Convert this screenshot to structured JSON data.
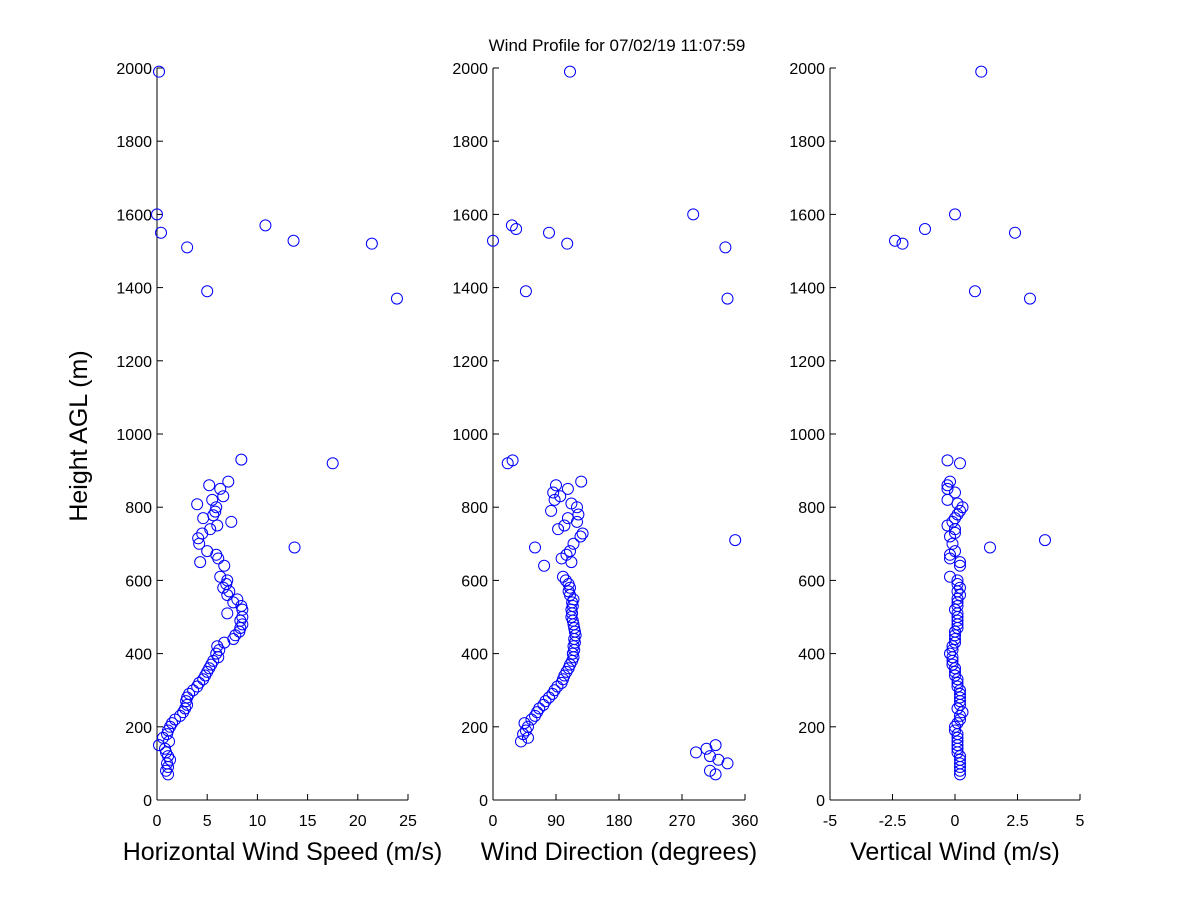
{
  "figure": {
    "title": "Wind Profile for  07/02/19 11:07:59",
    "ylabel": "Height AGL (m)"
  },
  "chart_data": [
    {
      "type": "scatter",
      "xlabel": "Horizontal Wind Speed (m/s)",
      "ylabel": "Height AGL (m)",
      "xlim": [
        0,
        25
      ],
      "ylim": [
        0,
        2000
      ],
      "xticks": [
        0,
        5,
        10,
        15,
        20,
        25
      ],
      "xtick_labels": [
        "0",
        "5",
        "10",
        "15",
        "20",
        "25"
      ],
      "yticks": [
        0,
        200,
        400,
        600,
        800,
        1000,
        1200,
        1400,
        1600,
        1800,
        2000
      ],
      "ytick_labels": [
        "0",
        "200",
        "400",
        "600",
        "800",
        "1000",
        "1200",
        "1400",
        "1600",
        "1800",
        "2000"
      ],
      "color": "#0000ff",
      "points": [
        [
          0.2,
          1990
        ],
        [
          0.0,
          1600
        ],
        [
          0.4,
          1550
        ],
        [
          3.0,
          1510
        ],
        [
          10.8,
          1570
        ],
        [
          13.6,
          1528
        ],
        [
          21.4,
          1520
        ],
        [
          5.0,
          1390
        ],
        [
          23.9,
          1370
        ],
        [
          8.4,
          930
        ],
        [
          17.5,
          920
        ],
        [
          7.1,
          870
        ],
        [
          5.2,
          860
        ],
        [
          6.3,
          850
        ],
        [
          6.6,
          830
        ],
        [
          5.5,
          820
        ],
        [
          4.0,
          808
        ],
        [
          5.9,
          800
        ],
        [
          5.8,
          788
        ],
        [
          5.6,
          778
        ],
        [
          4.6,
          770
        ],
        [
          7.4,
          760
        ],
        [
          6.0,
          750
        ],
        [
          5.3,
          740
        ],
        [
          4.5,
          728
        ],
        [
          4.1,
          715
        ],
        [
          4.2,
          700
        ],
        [
          13.7,
          690
        ],
        [
          5.0,
          680
        ],
        [
          5.9,
          670
        ],
        [
          6.1,
          660
        ],
        [
          4.3,
          650
        ],
        [
          6.7,
          640
        ],
        [
          6.3,
          610
        ],
        [
          7.0,
          600
        ],
        [
          6.9,
          590
        ],
        [
          6.6,
          580
        ],
        [
          7.2,
          570
        ],
        [
          7.0,
          560
        ],
        [
          8.0,
          548
        ],
        [
          7.6,
          540
        ],
        [
          8.4,
          530
        ],
        [
          8.5,
          520
        ],
        [
          7.0,
          510
        ],
        [
          8.5,
          500
        ],
        [
          8.3,
          490
        ],
        [
          8.5,
          480
        ],
        [
          8.3,
          470
        ],
        [
          8.2,
          460
        ],
        [
          7.8,
          450
        ],
        [
          7.6,
          440
        ],
        [
          6.7,
          430
        ],
        [
          6.0,
          420
        ],
        [
          6.2,
          410
        ],
        [
          5.9,
          400
        ],
        [
          6.1,
          390
        ],
        [
          5.6,
          380
        ],
        [
          5.4,
          370
        ],
        [
          5.2,
          360
        ],
        [
          5.0,
          350
        ],
        [
          4.8,
          340
        ],
        [
          4.6,
          330
        ],
        [
          4.2,
          320
        ],
        [
          4.0,
          310
        ],
        [
          3.6,
          300
        ],
        [
          3.2,
          290
        ],
        [
          3.0,
          280
        ],
        [
          2.9,
          270
        ],
        [
          3.0,
          260
        ],
        [
          2.8,
          250
        ],
        [
          2.6,
          240
        ],
        [
          2.3,
          230
        ],
        [
          1.8,
          220
        ],
        [
          1.5,
          210
        ],
        [
          1.3,
          200
        ],
        [
          1.1,
          190
        ],
        [
          1.0,
          180
        ],
        [
          0.6,
          170
        ],
        [
          1.2,
          160
        ],
        [
          0.2,
          150
        ],
        [
          0.8,
          140
        ],
        [
          0.9,
          130
        ],
        [
          1.1,
          120
        ],
        [
          1.3,
          110
        ],
        [
          1.0,
          100
        ],
        [
          1.1,
          90
        ],
        [
          0.9,
          80
        ],
        [
          1.1,
          70
        ]
      ]
    },
    {
      "type": "scatter",
      "xlabel": "Wind Direction (degrees)",
      "ylabel": "",
      "xlim": [
        0,
        360
      ],
      "ylim": [
        0,
        2000
      ],
      "xticks": [
        0,
        90,
        180,
        270,
        360
      ],
      "xtick_labels": [
        "0",
        "90",
        "180",
        "270",
        "360"
      ],
      "yticks": [
        0,
        200,
        400,
        600,
        800,
        1000,
        1200,
        1400,
        1600,
        1800,
        2000
      ],
      "ytick_labels": [
        "0",
        "200",
        "400",
        "600",
        "800",
        "1000",
        "1200",
        "1400",
        "1600",
        "1800",
        "2000"
      ],
      "color": "#0000ff",
      "points": [
        [
          110,
          1990
        ],
        [
          286,
          1600
        ],
        [
          27,
          1570
        ],
        [
          33,
          1560
        ],
        [
          80,
          1550
        ],
        [
          0,
          1528
        ],
        [
          106,
          1520
        ],
        [
          332,
          1510
        ],
        [
          47,
          1390
        ],
        [
          335,
          1370
        ],
        [
          21,
          920
        ],
        [
          28,
          928
        ],
        [
          126,
          870
        ],
        [
          90,
          860
        ],
        [
          107,
          850
        ],
        [
          86,
          840
        ],
        [
          96,
          830
        ],
        [
          88,
          820
        ],
        [
          112,
          810
        ],
        [
          120,
          800
        ],
        [
          83,
          790
        ],
        [
          122,
          780
        ],
        [
          107,
          770
        ],
        [
          120,
          760
        ],
        [
          102,
          750
        ],
        [
          93,
          740
        ],
        [
          128,
          728
        ],
        [
          125,
          720
        ],
        [
          346,
          710
        ],
        [
          115,
          700
        ],
        [
          60,
          690
        ],
        [
          110,
          680
        ],
        [
          105,
          670
        ],
        [
          98,
          660
        ],
        [
          112,
          650
        ],
        [
          73,
          640
        ],
        [
          100,
          610
        ],
        [
          104,
          600
        ],
        [
          108,
          590
        ],
        [
          110,
          580
        ],
        [
          108,
          570
        ],
        [
          110,
          560
        ],
        [
          115,
          548
        ],
        [
          113,
          540
        ],
        [
          114,
          530
        ],
        [
          112,
          520
        ],
        [
          113,
          510
        ],
        [
          112,
          500
        ],
        [
          114,
          490
        ],
        [
          115,
          480
        ],
        [
          116,
          470
        ],
        [
          117,
          460
        ],
        [
          118,
          450
        ],
        [
          116,
          440
        ],
        [
          117,
          430
        ],
        [
          115,
          420
        ],
        [
          116,
          410
        ],
        [
          114,
          400
        ],
        [
          115,
          390
        ],
        [
          113,
          380
        ],
        [
          110,
          370
        ],
        [
          108,
          360
        ],
        [
          105,
          350
        ],
        [
          102,
          340
        ],
        [
          100,
          330
        ],
        [
          98,
          320
        ],
        [
          92,
          310
        ],
        [
          88,
          300
        ],
        [
          85,
          290
        ],
        [
          80,
          280
        ],
        [
          75,
          270
        ],
        [
          72,
          260
        ],
        [
          66,
          250
        ],
        [
          63,
          240
        ],
        [
          60,
          230
        ],
        [
          55,
          220
        ],
        [
          45,
          210
        ],
        [
          50,
          200
        ],
        [
          47,
          190
        ],
        [
          43,
          180
        ],
        [
          50,
          170
        ],
        [
          40,
          160
        ],
        [
          290,
          130
        ],
        [
          305,
          140
        ],
        [
          318,
          150
        ],
        [
          310,
          120
        ],
        [
          322,
          110
        ],
        [
          335,
          100
        ],
        [
          310,
          80
        ],
        [
          318,
          70
        ]
      ]
    },
    {
      "type": "scatter",
      "xlabel": "Vertical Wind (m/s)",
      "ylabel": "",
      "xlim": [
        -5,
        5
      ],
      "ylim": [
        0,
        2000
      ],
      "xticks": [
        -5,
        -2.5,
        0,
        2.5,
        5
      ],
      "xtick_labels": [
        "-5",
        "-2.5",
        "0",
        "2.5",
        "5"
      ],
      "yticks": [
        0,
        200,
        400,
        600,
        800,
        1000,
        1200,
        1400,
        1600,
        1800,
        2000
      ],
      "ytick_labels": [
        "0",
        "200",
        "400",
        "600",
        "800",
        "1000",
        "1200",
        "1400",
        "1600",
        "1800",
        "2000"
      ],
      "color": "#0000ff",
      "points": [
        [
          1.05,
          1990
        ],
        [
          0.0,
          1600
        ],
        [
          -1.2,
          1560
        ],
        [
          2.4,
          1550
        ],
        [
          -2.4,
          1528
        ],
        [
          -2.1,
          1520
        ],
        [
          0.8,
          1390
        ],
        [
          3.0,
          1370
        ],
        [
          -0.3,
          928
        ],
        [
          0.2,
          920
        ],
        [
          -0.2,
          870
        ],
        [
          -0.3,
          860
        ],
        [
          -0.3,
          850
        ],
        [
          0.0,
          840
        ],
        [
          -0.3,
          820
        ],
        [
          0.1,
          810
        ],
        [
          0.3,
          800
        ],
        [
          0.2,
          790
        ],
        [
          0.1,
          780
        ],
        [
          0.0,
          770
        ],
        [
          -0.1,
          760
        ],
        [
          -0.3,
          750
        ],
        [
          0.0,
          740
        ],
        [
          0.0,
          730
        ],
        [
          -0.2,
          720
        ],
        [
          3.6,
          710
        ],
        [
          -0.1,
          700
        ],
        [
          1.4,
          690
        ],
        [
          0.0,
          680
        ],
        [
          -0.2,
          670
        ],
        [
          -0.2,
          660
        ],
        [
          0.2,
          650
        ],
        [
          0.2,
          640
        ],
        [
          -0.2,
          610
        ],
        [
          0.1,
          600
        ],
        [
          0.1,
          590
        ],
        [
          0.2,
          580
        ],
        [
          0.1,
          570
        ],
        [
          0.2,
          560
        ],
        [
          0.1,
          550
        ],
        [
          0.1,
          540
        ],
        [
          0.1,
          530
        ],
        [
          0.0,
          520
        ],
        [
          0.1,
          510
        ],
        [
          0.1,
          500
        ],
        [
          0.1,
          490
        ],
        [
          0.1,
          480
        ],
        [
          0.1,
          470
        ],
        [
          0.0,
          460
        ],
        [
          0.0,
          450
        ],
        [
          0.0,
          440
        ],
        [
          0.0,
          430
        ],
        [
          -0.1,
          420
        ],
        [
          -0.1,
          410
        ],
        [
          -0.2,
          400
        ],
        [
          -0.1,
          390
        ],
        [
          -0.1,
          380
        ],
        [
          -0.1,
          370
        ],
        [
          0.0,
          360
        ],
        [
          0.0,
          350
        ],
        [
          0.0,
          340
        ],
        [
          0.1,
          330
        ],
        [
          0.1,
          320
        ],
        [
          0.1,
          310
        ],
        [
          0.2,
          300
        ],
        [
          0.2,
          290
        ],
        [
          0.2,
          280
        ],
        [
          0.2,
          270
        ],
        [
          0.2,
          260
        ],
        [
          0.1,
          250
        ],
        [
          0.3,
          240
        ],
        [
          0.2,
          230
        ],
        [
          0.2,
          220
        ],
        [
          0.1,
          210
        ],
        [
          0.0,
          200
        ],
        [
          0.0,
          190
        ],
        [
          0.1,
          180
        ],
        [
          0.1,
          170
        ],
        [
          0.1,
          160
        ],
        [
          0.1,
          150
        ],
        [
          0.1,
          140
        ],
        [
          0.1,
          130
        ],
        [
          0.2,
          120
        ],
        [
          0.2,
          110
        ],
        [
          0.2,
          100
        ],
        [
          0.2,
          90
        ],
        [
          0.2,
          80
        ],
        [
          0.2,
          70
        ]
      ]
    }
  ]
}
